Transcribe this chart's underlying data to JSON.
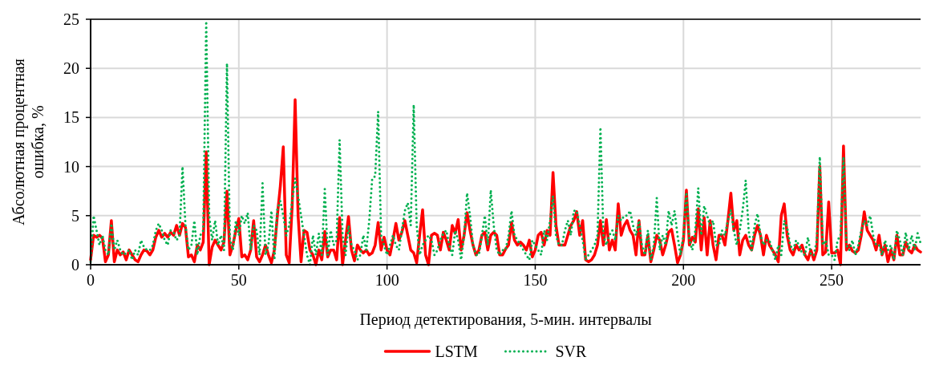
{
  "chart_data": {
    "type": "line",
    "xlabel": "Период детектирования, 5-мин. интервалы",
    "ylabel": "Абсолютная процентная ошибка, %",
    "xlim": [
      0,
      280
    ],
    "xticks": [
      0,
      50,
      100,
      150,
      200,
      250
    ],
    "ylim": [
      0,
      25
    ],
    "yticks": [
      0,
      5,
      10,
      15,
      20,
      25
    ],
    "grid": true,
    "legend": "bottom",
    "marker": "none",
    "x": [
      0,
      1,
      2,
      3,
      4,
      5,
      6,
      7,
      8,
      9,
      10,
      11,
      12,
      13,
      14,
      15,
      16,
      17,
      18,
      19,
      20,
      21,
      22,
      23,
      24,
      25,
      26,
      27,
      28,
      29,
      30,
      31,
      32,
      33,
      34,
      35,
      36,
      37,
      38,
      39,
      40,
      41,
      42,
      43,
      44,
      45,
      46,
      47,
      48,
      49,
      50,
      51,
      52,
      53,
      54,
      55,
      56,
      57,
      58,
      59,
      60,
      61,
      62,
      63,
      64,
      65,
      66,
      67,
      68,
      69,
      70,
      71,
      72,
      73,
      74,
      75,
      76,
      77,
      78,
      79,
      80,
      81,
      82,
      83,
      84,
      85,
      86,
      87,
      88,
      89,
      90,
      91,
      92,
      93,
      94,
      95,
      96,
      97,
      98,
      99,
      100,
      101,
      102,
      103,
      104,
      105,
      106,
      107,
      108,
      109,
      110,
      111,
      112,
      113,
      114,
      115,
      116,
      117,
      118,
      119,
      120,
      121,
      122,
      123,
      124,
      125,
      126,
      127,
      128,
      129,
      130,
      131,
      132,
      133,
      134,
      135,
      136,
      137,
      138,
      139,
      140,
      141,
      142,
      143,
      144,
      145,
      146,
      147,
      148,
      149,
      150,
      151,
      152,
      153,
      154,
      155,
      156,
      157,
      158,
      159,
      160,
      161,
      162,
      163,
      164,
      165,
      166,
      167,
      168,
      169,
      170,
      171,
      172,
      173,
      174,
      175,
      176,
      177,
      178,
      179,
      180,
      181,
      182,
      183,
      184,
      185,
      186,
      187,
      188,
      189,
      190,
      191,
      192,
      193,
      194,
      195,
      196,
      197,
      198,
      199,
      200,
      201,
      202,
      203,
      204,
      205,
      206,
      207,
      208,
      209,
      210,
      211,
      212,
      213,
      214,
      215,
      216,
      217,
      218,
      219,
      220,
      221,
      222,
      223,
      224,
      225,
      226,
      227,
      228,
      229,
      230,
      231,
      232,
      233,
      234,
      235,
      236,
      237,
      238,
      239,
      240,
      241,
      242,
      243,
      244,
      245,
      246,
      247,
      248,
      249,
      250,
      251,
      252,
      253,
      254,
      255,
      256,
      257,
      258,
      259,
      260,
      261,
      262,
      263,
      264,
      265,
      266,
      267,
      268,
      269,
      270,
      271,
      272,
      273,
      274,
      275,
      276,
      277,
      278,
      279,
      280
    ],
    "series": [
      {
        "name": "LSTM",
        "color": "#ff0000",
        "line_style": "solid",
        "values": [
          0.5,
          3,
          2.8,
          3,
          2.7,
          0.3,
          1,
          4.5,
          0.3,
          1.5,
          1,
          1.3,
          0.5,
          1.5,
          1,
          0.5,
          0.3,
          1,
          1.5,
          1.4,
          1,
          1.5,
          2.8,
          3.5,
          2.8,
          3.2,
          2.8,
          3.3,
          3,
          4,
          3,
          4.2,
          3.8,
          0.8,
          1,
          0.3,
          2,
          1.5,
          2.3,
          11.5,
          0,
          1.8,
          2.5,
          2,
          1.5,
          2.3,
          7.5,
          1,
          2,
          3.5,
          4.7,
          0.8,
          1,
          0.5,
          1.5,
          4.5,
          0.8,
          0.3,
          1,
          2,
          1,
          0.2,
          1.5,
          5,
          8,
          12,
          1,
          0.2,
          6,
          16.8,
          5,
          0.3,
          3.5,
          3.3,
          1.5,
          1,
          0,
          1.5,
          0.5,
          3.4,
          0.8,
          1.5,
          1.5,
          0.5,
          4.8,
          0,
          2.5,
          4.9,
          1.5,
          0.4,
          2,
          1.5,
          1.2,
          1.5,
          1,
          1.2,
          2,
          4.3,
          1.5,
          2.8,
          1.5,
          1,
          2.5,
          4.2,
          2.5,
          3.3,
          4.5,
          3,
          1.5,
          1.2,
          0.2,
          3,
          5.6,
          1,
          0,
          3,
          3.2,
          3,
          1.5,
          3.3,
          2.5,
          1.5,
          4,
          3.2,
          4.6,
          1.5,
          3,
          5.3,
          3.5,
          2,
          1,
          1.5,
          3,
          3.3,
          1.5,
          3,
          3.3,
          3,
          1,
          1,
          1.6,
          2,
          4.3,
          2.5,
          2,
          2.3,
          2,
          1.5,
          2.5,
          0.8,
          1.5,
          3,
          3.3,
          2,
          3.5,
          3,
          9.4,
          4,
          2,
          2,
          2,
          3,
          4,
          4.5,
          5.4,
          3,
          4.5,
          0.5,
          0.3,
          0.5,
          1,
          2,
          4.5,
          2,
          4.6,
          1.5,
          2.5,
          1.5,
          6.2,
          3,
          4,
          4.5,
          3.5,
          3,
          1,
          4.5,
          1,
          1,
          3,
          0.3,
          1.5,
          3,
          2.5,
          1,
          2,
          3.3,
          3.6,
          2,
          0.2,
          1,
          2.5,
          7.6,
          2,
          2.8,
          2.3,
          5.7,
          1.5,
          4.8,
          1,
          4.5,
          2,
          0.5,
          3,
          3,
          2,
          4.5,
          7.3,
          3.5,
          4.5,
          1,
          2.5,
          3,
          2,
          1.5,
          3,
          4,
          3,
          1,
          3,
          2,
          1.5,
          1,
          0.3,
          5,
          6.2,
          3,
          1.5,
          1,
          2,
          1.5,
          2,
          1,
          0.5,
          1.5,
          0.5,
          1.5,
          10,
          1,
          1.3,
          6.4,
          1.2,
          1.2,
          1.5,
          0,
          12.1,
          1.5,
          2,
          1.4,
          1.2,
          1.5,
          3,
          5.4,
          3.5,
          3,
          2.5,
          1.5,
          3,
          1,
          2,
          0.3,
          1.5,
          0.5,
          3,
          1,
          1,
          2.3,
          1.5,
          1.2,
          2,
          1.5,
          1.3
        ]
      },
      {
        "name": "SVR",
        "color": "#00b050",
        "line_style": "dotted",
        "values": [
          0.3,
          5,
          3.5,
          2,
          3,
          1.5,
          1,
          4.2,
          1.5,
          2.5,
          1.5,
          1,
          1.2,
          1.5,
          0.5,
          1.5,
          1,
          2.5,
          1.8,
          1.5,
          1.5,
          2,
          3.5,
          4.2,
          3.5,
          2.5,
          2,
          3.5,
          3.3,
          2.5,
          3,
          10,
          4,
          1.5,
          2,
          4.5,
          1,
          3,
          3.5,
          24.8,
          5,
          2.5,
          4.5,
          2,
          3,
          1.5,
          20.5,
          2.5,
          1.5,
          4.5,
          3,
          5,
          4.2,
          5.3,
          1.5,
          4,
          3.5,
          1,
          8.3,
          1,
          2,
          5.5,
          0.5,
          5.7,
          6.5,
          5,
          3,
          4,
          6.5,
          8.8,
          7,
          5,
          3,
          1,
          0,
          3,
          1,
          3.2,
          1,
          7.7,
          1,
          3.5,
          2,
          2.5,
          12.7,
          3,
          1,
          4,
          2,
          1.5,
          0.5,
          1,
          3,
          1.5,
          4.5,
          8.8,
          9,
          15.6,
          3,
          2,
          1,
          2,
          3,
          2,
          1.5,
          3.5,
          5.5,
          6.3,
          4,
          16.3,
          4,
          1,
          2,
          2.5,
          3,
          2.5,
          1,
          1.5,
          2.5,
          3.2,
          3.5,
          2,
          1,
          3.5,
          2.5,
          0.5,
          3,
          7.3,
          5,
          2,
          1,
          1,
          3,
          5,
          2,
          7.6,
          4,
          1.5,
          1,
          1.5,
          1.5,
          3,
          5.5,
          3,
          2.5,
          2,
          1.5,
          1,
          0.5,
          2.5,
          2,
          1.5,
          1,
          3.5,
          2.5,
          4.5,
          7,
          3,
          2,
          2,
          3.5,
          4.5,
          3,
          5.5,
          5.5,
          4,
          2.5,
          0.5,
          1,
          1.5,
          2,
          3,
          14,
          3,
          2,
          3,
          3.5,
          2.5,
          5,
          4.5,
          5,
          5,
          5.5,
          4,
          3,
          4.5,
          2,
          1,
          3.5,
          0.5,
          2,
          6.8,
          1.5,
          3,
          2,
          5.5,
          4,
          5.5,
          3,
          1,
          3,
          7.4,
          2.5,
          1.5,
          3.5,
          7.8,
          3,
          6,
          5,
          4,
          4.5,
          2,
          2,
          3.5,
          3,
          4.5,
          5.6,
          3.5,
          2,
          3.5,
          5.6,
          8.6,
          3.5,
          1.5,
          4,
          5.2,
          3,
          2,
          2.5,
          2.5,
          1.5,
          0.5,
          2,
          1,
          4.5,
          3.8,
          2,
          1.5,
          2.5,
          2,
          1.2,
          1,
          2.8,
          1,
          1,
          2.5,
          11,
          2,
          2.5,
          1,
          1,
          0.5,
          2.5,
          3,
          11,
          2,
          1.5,
          2.5,
          1,
          2,
          3.5,
          4.5,
          4,
          5,
          3,
          2,
          2,
          1,
          2.5,
          1.5,
          2,
          0.5,
          3.5,
          2.5,
          1,
          3.3,
          1.5,
          3,
          1.5,
          3.2,
          2.2
        ]
      }
    ]
  }
}
